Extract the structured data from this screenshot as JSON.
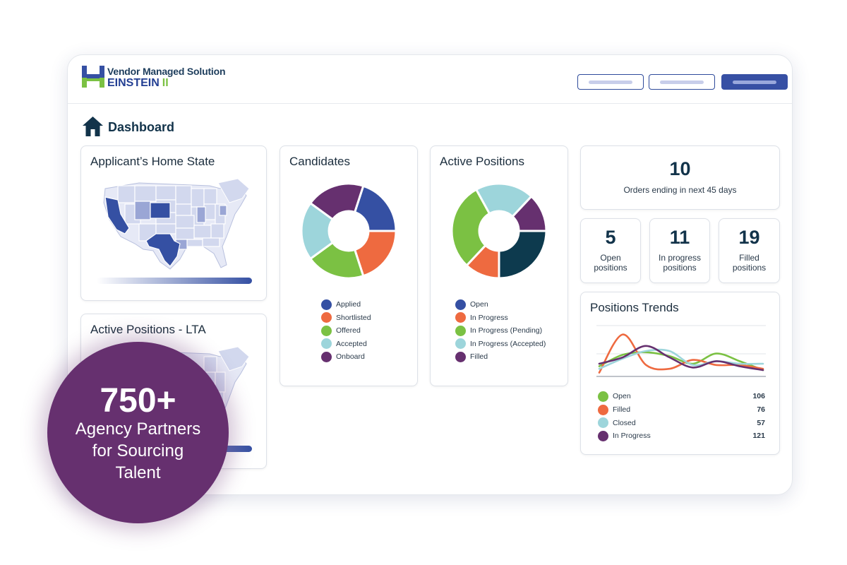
{
  "colors": {
    "navy": "#3550a3",
    "orange": "#ee6a40",
    "green": "#7bc143",
    "teal": "#9dd5db",
    "purple": "#66306f",
    "dark_teal": "#0d3a4e"
  },
  "header": {
    "brand_top": "Vendor Managed Solution",
    "brand_name": "EINSTEIN",
    "brand_roman": "II",
    "logo_icon": "einstein-h-logo-icon"
  },
  "breadcrumb": {
    "icon": "home-icon",
    "title": "Dashboard"
  },
  "home_state_card": {
    "title": "Applicant’s Home State",
    "map_icon": "us-map-icon"
  },
  "lta_card": {
    "title": "Active Positions - LTA",
    "map_icon": "us-map-icon"
  },
  "candidates_card": {
    "title": "Candidates",
    "chart_data": {
      "type": "pie",
      "categories": [
        "Applied",
        "Shortlisted",
        "Offered",
        "Accepted",
        "Onboard"
      ],
      "values": [
        20,
        20,
        20,
        20,
        20
      ],
      "colors": [
        "#3550a3",
        "#ee6a40",
        "#7bc143",
        "#9dd5db",
        "#66306f"
      ]
    }
  },
  "active_positions_card": {
    "title": "Active Positions",
    "chart_data": {
      "type": "pie",
      "categories": [
        "Open",
        "In Progress",
        "In Progress (Pending)",
        "In Progress (Accepted)",
        "Filled"
      ],
      "values": [
        25,
        12,
        30,
        20,
        13
      ],
      "colors": [
        "#0d3a4e",
        "#ee6a40",
        "#7bc143",
        "#9dd5db",
        "#66306f"
      ],
      "legend_colors": [
        "#3550a3",
        "#ee6a40",
        "#7bc143",
        "#9dd5db",
        "#66306f"
      ]
    }
  },
  "orders_card": {
    "value": "10",
    "label": "Orders ending in next 45 days"
  },
  "stats": [
    {
      "value": "5",
      "line1": "Open",
      "line2": "positions"
    },
    {
      "value": "11",
      "line1": "In progress",
      "line2": "positions"
    },
    {
      "value": "19",
      "line1": "Filled",
      "line2": "positions"
    }
  ],
  "trends_card": {
    "title": "Positions Trends",
    "chart_data": {
      "type": "line",
      "x": [
        0,
        1,
        2,
        3,
        4,
        5,
        6,
        7
      ],
      "ylim": [
        0,
        4
      ],
      "series": [
        {
          "name": "Open",
          "color": "#7bc143",
          "total": "106",
          "values": [
            0.8,
            1.7,
            1.9,
            1.6,
            1.0,
            1.8,
            1.2,
            0.5
          ]
        },
        {
          "name": "Filled",
          "color": "#ee6a40",
          "total": "76",
          "values": [
            0.3,
            3.3,
            0.9,
            0.6,
            1.3,
            0.9,
            0.9,
            0.6
          ]
        },
        {
          "name": "Closed",
          "color": "#9dd5db",
          "total": "57",
          "values": [
            0.6,
            1.4,
            2.0,
            2.0,
            0.9,
            1.2,
            1.0,
            1.0
          ]
        },
        {
          "name": "In Progress",
          "color": "#66306f",
          "total": "121",
          "values": [
            1.0,
            1.5,
            2.4,
            1.5,
            0.7,
            1.2,
            0.8,
            0.5
          ]
        }
      ]
    }
  },
  "promo": {
    "number": "750+",
    "line1": "Agency Partners",
    "line2": "for Sourcing",
    "line3": "Talent"
  }
}
